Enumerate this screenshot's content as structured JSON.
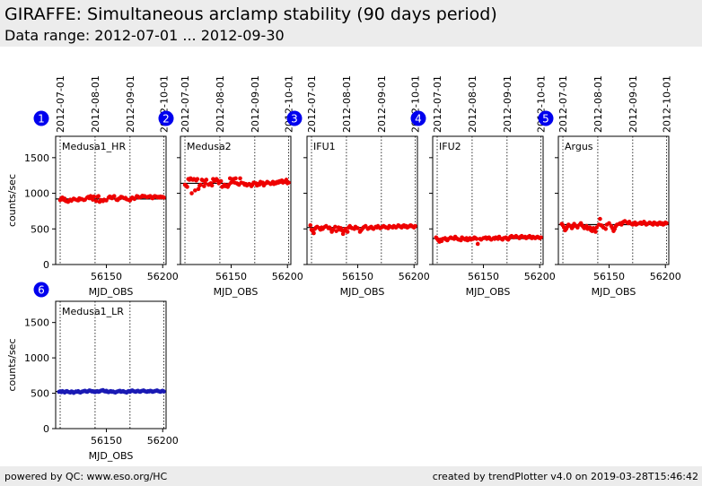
{
  "header": {
    "title": "GIRAFFE: Simultaneous arclamp stability (90 days period)",
    "subtitle": "Data range: 2012-07-01 ... 2012-09-30"
  },
  "footer": {
    "left": "powered by QC: www.eso.org/HC",
    "right": "created by trendPlotter v4.0 on 2019-03-28T15:46:42"
  },
  "colors": {
    "red_points": "#ee0000",
    "blue_points": "#1a1ab4",
    "badge": "#0000ee",
    "reference_line": "#000000"
  },
  "chart_data": [
    {
      "type": "scatter",
      "badge": "1",
      "label": "Medusa1_HR",
      "color": "red",
      "xlabel": "MJD_OBS",
      "ylabel": "counts/sec",
      "xlim": [
        56105,
        56203
      ],
      "ylim": [
        0,
        1800
      ],
      "xticks": [
        56150,
        56200
      ],
      "yticks": [
        0,
        500,
        1000,
        1500
      ],
      "date_ticks": [
        {
          "label": "2012-07-01",
          "mjd": 56109
        },
        {
          "label": "2012-08-01",
          "mjd": 56140
        },
        {
          "label": "2012-09-01",
          "mjd": 56171
        },
        {
          "label": "2012-10-01",
          "mjd": 56201
        }
      ],
      "reference": 920,
      "x": [
        56109,
        56110,
        56111,
        56112,
        56113,
        56114,
        56116,
        56117,
        56118,
        56119,
        56121,
        56122,
        56124,
        56125,
        56126,
        56127,
        56128,
        56130,
        56131,
        56133,
        56134,
        56135,
        56136,
        56137,
        56138,
        56139,
        56141,
        56142,
        56143,
        56144,
        56145,
        56147,
        56148,
        56150,
        56152,
        56153,
        56154,
        56155,
        56156,
        56157,
        56159,
        56160,
        56161,
        56162,
        56163,
        56164,
        56166,
        56167,
        56168,
        56170,
        56171,
        56172,
        56173,
        56174,
        56175,
        56177,
        56178,
        56179,
        56181,
        56182,
        56183,
        56184,
        56186,
        56187,
        56188,
        56189,
        56190,
        56191,
        56192,
        56193,
        56194,
        56195,
        56196,
        56197,
        56198,
        56199,
        56200,
        56201
      ],
      "y": [
        905,
        930,
        940,
        910,
        925,
        890,
        880,
        900,
        910,
        895,
        925,
        915,
        905,
        900,
        930,
        915,
        920,
        905,
        910,
        940,
        950,
        930,
        960,
        945,
        910,
        955,
        890,
        950,
        960,
        880,
        905,
        890,
        910,
        900,
        940,
        955,
        945,
        930,
        950,
        960,
        910,
        905,
        925,
        930,
        950,
        945,
        930,
        935,
        915,
        905,
        900,
        925,
        940,
        930,
        920,
        960,
        955,
        940,
        950,
        965,
        955,
        960,
        945,
        950,
        955,
        960,
        940,
        930,
        950,
        960,
        955,
        945,
        950,
        940,
        955,
        945,
        950,
        940
      ]
    },
    {
      "type": "scatter",
      "badge": "2",
      "label": "Medusa2",
      "color": "red",
      "xlabel": "MJD_OBS",
      "ylabel": "",
      "xlim": [
        56105,
        56203
      ],
      "ylim": [
        0,
        1800
      ],
      "xticks": [
        56150,
        56200
      ],
      "yticks": [
        0,
        500,
        1000,
        1500
      ],
      "date_ticks": [
        {
          "label": "2012-07-01",
          "mjd": 56109
        },
        {
          "label": "2012-08-01",
          "mjd": 56140
        },
        {
          "label": "2012-09-01",
          "mjd": 56171
        },
        {
          "label": "2012-10-01",
          "mjd": 56201
        }
      ],
      "reference": 1140,
      "x": [
        56109,
        56110,
        56111,
        56112,
        56113,
        56114,
        56115,
        56116,
        56117,
        56118,
        56119,
        56120,
        56121,
        56122,
        56123,
        56124,
        56125,
        56126,
        56127,
        56128,
        56130,
        56131,
        56132,
        56133,
        56134,
        56135,
        56136,
        56137,
        56138,
        56139,
        56141,
        56142,
        56143,
        56144,
        56145,
        56146,
        56147,
        56148,
        56149,
        56150,
        56151,
        56152,
        56153,
        56154,
        56155,
        56156,
        56157,
        56158,
        56159,
        56161,
        56162,
        56163,
        56164,
        56166,
        56167,
        56168,
        56169,
        56170,
        56172,
        56173,
        56174,
        56175,
        56176,
        56177,
        56178,
        56179,
        56181,
        56182,
        56183,
        56185,
        56186,
        56187,
        56188,
        56189,
        56190,
        56191,
        56192,
        56193,
        56194,
        56195,
        56196,
        56197,
        56198,
        56199,
        56200,
        56201
      ],
      "y": [
        1120,
        1110,
        1090,
        1200,
        1190,
        1210,
        1000,
        1190,
        1200,
        1040,
        1180,
        1200,
        1060,
        1110,
        1120,
        1190,
        1180,
        1100,
        1140,
        1190,
        1120,
        1130,
        1140,
        1110,
        1200,
        1170,
        1180,
        1200,
        1180,
        1140,
        1170,
        1090,
        1100,
        1120,
        1100,
        1110,
        1090,
        1120,
        1210,
        1150,
        1190,
        1200,
        1150,
        1210,
        1140,
        1130,
        1120,
        1210,
        1150,
        1140,
        1120,
        1130,
        1110,
        1130,
        1120,
        1100,
        1120,
        1150,
        1140,
        1110,
        1130,
        1120,
        1160,
        1140,
        1150,
        1110,
        1140,
        1160,
        1150,
        1130,
        1140,
        1160,
        1130,
        1150,
        1140,
        1160,
        1150,
        1170,
        1160,
        1180,
        1150,
        1160,
        1170,
        1190,
        1140,
        1150
      ]
    },
    {
      "type": "scatter",
      "badge": "3",
      "label": "IFU1",
      "color": "red",
      "xlabel": "MJD_OBS",
      "ylabel": "",
      "xlim": [
        56105,
        56203
      ],
      "ylim": [
        0,
        1800
      ],
      "xticks": [
        56150,
        56200
      ],
      "yticks": [
        0,
        500,
        1000,
        1500
      ],
      "date_ticks": [
        {
          "label": "2012-07-01",
          "mjd": 56109
        },
        {
          "label": "2012-08-01",
          "mjd": 56140
        },
        {
          "label": "2012-09-01",
          "mjd": 56171
        },
        {
          "label": "2012-10-01",
          "mjd": 56201
        }
      ],
      "reference": 520,
      "x": [
        56108,
        56109,
        56110,
        56111,
        56112,
        56113,
        56114,
        56116,
        56117,
        56118,
        56119,
        56121,
        56122,
        56124,
        56125,
        56126,
        56127,
        56128,
        56130,
        56131,
        56133,
        56134,
        56135,
        56136,
        56137,
        56138,
        56139,
        56141,
        56142,
        56143,
        56144,
        56145,
        56147,
        56148,
        56150,
        56152,
        56153,
        56154,
        56155,
        56156,
        56157,
        56159,
        56160,
        56161,
        56162,
        56163,
        56164,
        56166,
        56167,
        56168,
        56170,
        56171,
        56172,
        56173,
        56174,
        56175,
        56177,
        56178,
        56179,
        56181,
        56182,
        56183,
        56184,
        56186,
        56187,
        56188,
        56189,
        56190,
        56191,
        56192,
        56193,
        56194,
        56195,
        56196,
        56197,
        56198,
        56199,
        56200,
        56201
      ],
      "y": [
        550,
        490,
        470,
        440,
        500,
        520,
        530,
        510,
        490,
        520,
        500,
        530,
        540,
        510,
        520,
        500,
        460,
        490,
        530,
        470,
        520,
        490,
        510,
        480,
        430,
        470,
        500,
        460,
        520,
        540,
        520,
        510,
        500,
        530,
        510,
        460,
        480,
        500,
        520,
        530,
        540,
        500,
        510,
        520,
        530,
        510,
        500,
        530,
        520,
        540,
        510,
        520,
        530,
        540,
        530,
        520,
        510,
        540,
        530,
        520,
        540,
        530,
        520,
        550,
        540,
        530,
        520,
        540,
        550,
        530,
        540,
        520,
        530,
        540,
        550,
        540,
        530,
        520,
        540
      ]
    },
    {
      "type": "scatter",
      "badge": "4",
      "label": "IFU2",
      "color": "red",
      "xlabel": "MJD_OBS",
      "ylabel": "",
      "xlim": [
        56105,
        56203
      ],
      "ylim": [
        0,
        1800
      ],
      "xticks": [
        56150,
        56200
      ],
      "yticks": [
        0,
        500,
        1000,
        1500
      ],
      "date_ticks": [
        {
          "label": "2012-07-01",
          "mjd": 56109
        },
        {
          "label": "2012-08-01",
          "mjd": 56140
        },
        {
          "label": "2012-09-01",
          "mjd": 56171
        },
        {
          "label": "2012-10-01",
          "mjd": 56201
        }
      ],
      "reference": 365,
      "x": [
        56108,
        56109,
        56110,
        56111,
        56112,
        56113,
        56114,
        56116,
        56117,
        56118,
        56119,
        56121,
        56122,
        56124,
        56125,
        56126,
        56127,
        56128,
        56130,
        56131,
        56133,
        56134,
        56135,
        56136,
        56137,
        56138,
        56139,
        56141,
        56142,
        56143,
        56144,
        56145,
        56147,
        56148,
        56150,
        56152,
        56153,
        56154,
        56155,
        56156,
        56157,
        56159,
        56160,
        56161,
        56162,
        56163,
        56164,
        56166,
        56167,
        56168,
        56170,
        56171,
        56172,
        56173,
        56174,
        56175,
        56177,
        56178,
        56179,
        56181,
        56182,
        56183,
        56184,
        56186,
        56187,
        56188,
        56189,
        56190,
        56191,
        56192,
        56193,
        56194,
        56195,
        56196,
        56197,
        56198,
        56199,
        56200,
        56201
      ],
      "y": [
        380,
        360,
        340,
        320,
        350,
        330,
        360,
        370,
        350,
        340,
        360,
        380,
        370,
        360,
        390,
        370,
        360,
        350,
        340,
        380,
        360,
        350,
        370,
        340,
        360,
        370,
        350,
        360,
        380,
        370,
        360,
        290,
        360,
        350,
        370,
        380,
        360,
        370,
        380,
        360,
        350,
        370,
        360,
        380,
        370,
        360,
        390,
        360,
        350,
        370,
        380,
        360,
        350,
        370,
        390,
        400,
        380,
        390,
        400,
        380,
        370,
        390,
        400,
        380,
        390,
        370,
        380,
        390,
        400,
        380,
        370,
        390,
        380,
        370,
        380,
        390,
        380,
        370,
        380
      ]
    },
    {
      "type": "scatter",
      "badge": "5",
      "label": "Argus",
      "color": "red",
      "xlabel": "MJD_OBS",
      "ylabel": "",
      "xlim": [
        56105,
        56203
      ],
      "ylim": [
        0,
        1800
      ],
      "xticks": [
        56150,
        56200
      ],
      "yticks": [
        0,
        500,
        1000,
        1500
      ],
      "date_ticks": [
        {
          "label": "2012-07-01",
          "mjd": 56109
        },
        {
          "label": "2012-08-01",
          "mjd": 56140
        },
        {
          "label": "2012-09-01",
          "mjd": 56171
        },
        {
          "label": "2012-10-01",
          "mjd": 56201
        }
      ],
      "reference": 560,
      "x": [
        56108,
        56109,
        56110,
        56111,
        56112,
        56113,
        56114,
        56116,
        56117,
        56118,
        56119,
        56121,
        56122,
        56124,
        56125,
        56126,
        56127,
        56128,
        56130,
        56131,
        56133,
        56134,
        56135,
        56136,
        56137,
        56138,
        56139,
        56141,
        56142,
        56143,
        56144,
        56145,
        56147,
        56148,
        56150,
        56152,
        56153,
        56154,
        56155,
        56156,
        56157,
        56159,
        56160,
        56161,
        56162,
        56163,
        56164,
        56166,
        56167,
        56168,
        56170,
        56171,
        56172,
        56173,
        56174,
        56175,
        56177,
        56178,
        56179,
        56181,
        56182,
        56183,
        56184,
        56186,
        56187,
        56188,
        56189,
        56190,
        56191,
        56192,
        56193,
        56194,
        56195,
        56196,
        56197,
        56198,
        56199,
        56200,
        56201
      ],
      "y": [
        570,
        550,
        520,
        480,
        500,
        530,
        560,
        540,
        510,
        530,
        570,
        540,
        520,
        560,
        580,
        550,
        530,
        510,
        540,
        500,
        520,
        480,
        470,
        510,
        490,
        460,
        520,
        560,
        640,
        550,
        540,
        520,
        500,
        560,
        580,
        540,
        510,
        470,
        500,
        540,
        560,
        570,
        580,
        560,
        590,
        600,
        610,
        590,
        580,
        600,
        570,
        560,
        580,
        590,
        560,
        570,
        580,
        590,
        570,
        600,
        580,
        560,
        570,
        590,
        580,
        570,
        560,
        590,
        580,
        570,
        560,
        580,
        590,
        570,
        580,
        560,
        570,
        590,
        580
      ]
    },
    {
      "type": "scatter",
      "badge": "6",
      "label": "Medusa1_LR",
      "color": "blue",
      "xlabel": "MJD_OBS",
      "ylabel": "counts/sec",
      "xlim": [
        56105,
        56203
      ],
      "ylim": [
        0,
        1800
      ],
      "xticks": [
        56150,
        56200
      ],
      "yticks": [
        0,
        500,
        1000,
        1500
      ],
      "date_ticks": [
        {
          "label": "2012-07-01",
          "mjd": 56109
        },
        {
          "label": "2012-08-01",
          "mjd": 56140
        },
        {
          "label": "2012-09-01",
          "mjd": 56171
        },
        {
          "label": "2012-10-01",
          "mjd": 56201
        }
      ],
      "reference": 525,
      "x": [
        56108,
        56109,
        56110,
        56111,
        56112,
        56113,
        56114,
        56115,
        56116,
        56117,
        56118,
        56119,
        56120,
        56121,
        56122,
        56123,
        56124,
        56125,
        56126,
        56127,
        56128,
        56129,
        56130,
        56131,
        56132,
        56133,
        56134,
        56135,
        56136,
        56137,
        56138,
        56139,
        56140,
        56141,
        56142,
        56143,
        56144,
        56145,
        56146,
        56147,
        56148,
        56149,
        56150,
        56151,
        56152,
        56153,
        56154,
        56155,
        56156,
        56157,
        56158,
        56159,
        56160,
        56161,
        56162,
        56163,
        56164,
        56165,
        56166,
        56167,
        56168,
        56169,
        56170,
        56171,
        56172,
        56173,
        56174,
        56175,
        56176,
        56177,
        56178,
        56179,
        56180,
        56181,
        56182,
        56183,
        56184,
        56185,
        56186,
        56187,
        56188,
        56189,
        56190,
        56191,
        56192,
        56193,
        56194,
        56195,
        56196,
        56197,
        56198,
        56199,
        56200,
        56201
      ],
      "y": [
        520,
        525,
        515,
        530,
        520,
        510,
        525,
        530,
        520,
        515,
        510,
        525,
        520,
        505,
        515,
        525,
        520,
        530,
        515,
        510,
        520,
        525,
        530,
        535,
        525,
        520,
        530,
        540,
        535,
        525,
        530,
        520,
        515,
        525,
        530,
        520,
        525,
        535,
        540,
        545,
        530,
        525,
        535,
        520,
        515,
        525,
        530,
        520,
        525,
        515,
        510,
        520,
        525,
        530,
        535,
        520,
        525,
        530,
        520,
        515,
        510,
        525,
        530,
        520,
        535,
        540,
        530,
        525,
        520,
        530,
        535,
        525,
        520,
        530,
        535,
        540,
        530,
        525,
        520,
        530,
        525,
        535,
        530,
        520,
        525,
        530,
        535,
        540,
        530,
        525,
        520,
        530,
        535,
        525
      ]
    }
  ]
}
